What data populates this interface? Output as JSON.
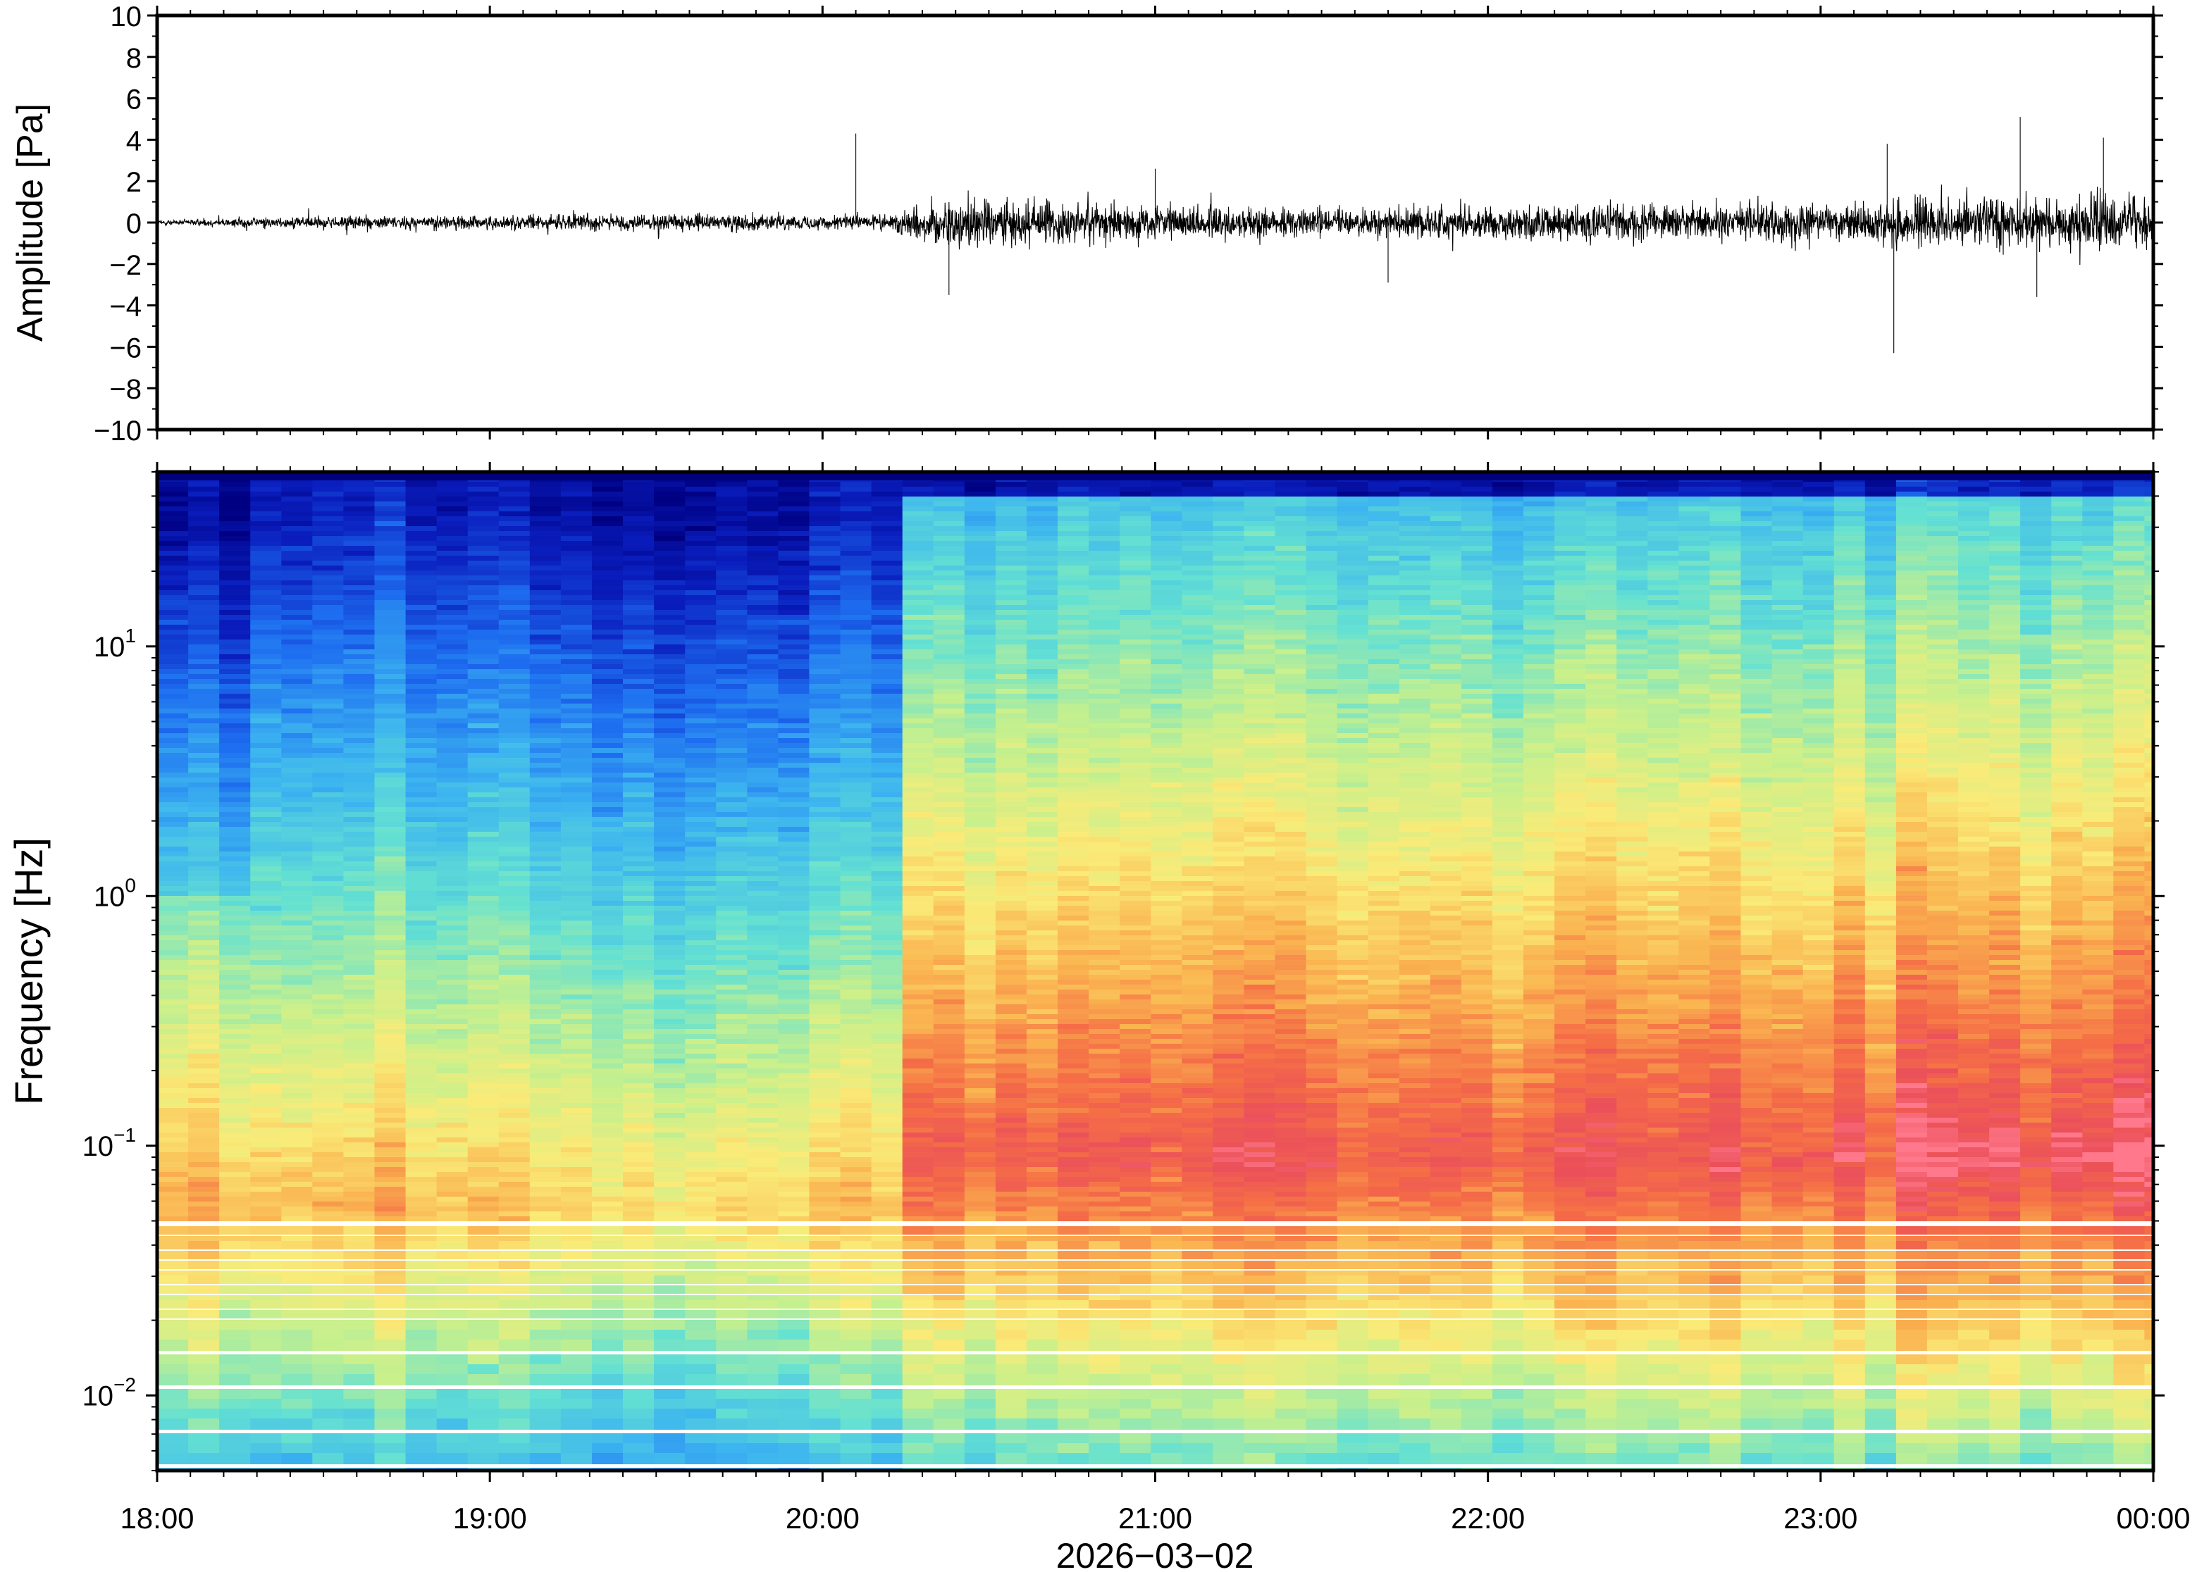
{
  "chart_data": [
    {
      "type": "line",
      "title": "",
      "ylabel": "Amplitude [Pa]",
      "ylim": [
        -10,
        10
      ],
      "y_ticks": [
        "10",
        "8",
        "6",
        "4",
        "2",
        "0",
        "−2",
        "−4",
        "−6",
        "−8",
        "−10"
      ],
      "grid": false,
      "series": [
        {
          "x_start": "18:00",
          "x_end": "00:00",
          "envelope_hours": [
            0,
            0.25,
            0.5,
            0.75,
            1.0,
            1.25,
            1.5,
            1.75,
            2.0,
            2.2,
            2.3,
            2.5,
            2.75,
            3.0,
            3.25,
            3.5,
            3.75,
            4.0,
            4.25,
            4.5,
            4.75,
            5.0,
            5.25,
            5.5,
            5.75,
            6.0
          ],
          "envelope_pa": [
            0.2,
            0.4,
            0.6,
            0.6,
            0.6,
            0.7,
            0.7,
            0.7,
            0.6,
            0.7,
            1.8,
            2.2,
            1.8,
            1.4,
            1.3,
            1.2,
            1.3,
            1.5,
            1.5,
            1.6,
            1.6,
            1.6,
            2.0,
            2.3,
            2.2,
            2.0
          ],
          "peaks": [
            {
              "hour": 2.1,
              "pa": 4.3
            },
            {
              "hour": 2.38,
              "pa": -3.5
            },
            {
              "hour": 3.0,
              "pa": 2.6
            },
            {
              "hour": 3.7,
              "pa": -2.9
            },
            {
              "hour": 5.2,
              "pa": 3.8
            },
            {
              "hour": 5.22,
              "pa": -6.3
            },
            {
              "hour": 5.6,
              "pa": 5.1
            },
            {
              "hour": 5.65,
              "pa": -3.6
            },
            {
              "hour": 5.85,
              "pa": 4.1
            }
          ]
        }
      ]
    },
    {
      "type": "heatmap",
      "title": "",
      "ylabel": "Frequency [Hz]",
      "xlabel": "2026−03−02",
      "y_scale": "log",
      "ylim": [
        0.005,
        50
      ],
      "y_ticks": [
        {
          "base": "10",
          "exp": "1",
          "value": 10
        },
        {
          "base": "10",
          "exp": "0",
          "value": 1
        },
        {
          "base": "10",
          "exp": "−1",
          "value": 0.1
        },
        {
          "base": "10",
          "exp": "−2",
          "value": 0.01
        }
      ],
      "x_ticks": [
        "18:00",
        "19:00",
        "20:00",
        "21:00",
        "22:00",
        "23:00",
        "00:00"
      ],
      "grid": false,
      "colormap": "jet-like",
      "colors": {
        "low": "#1022b0",
        "mid": "#f8f07a",
        "high": "#ff6070"
      },
      "regime_change_time": "20:12",
      "column_minutes": 5.6
    }
  ]
}
